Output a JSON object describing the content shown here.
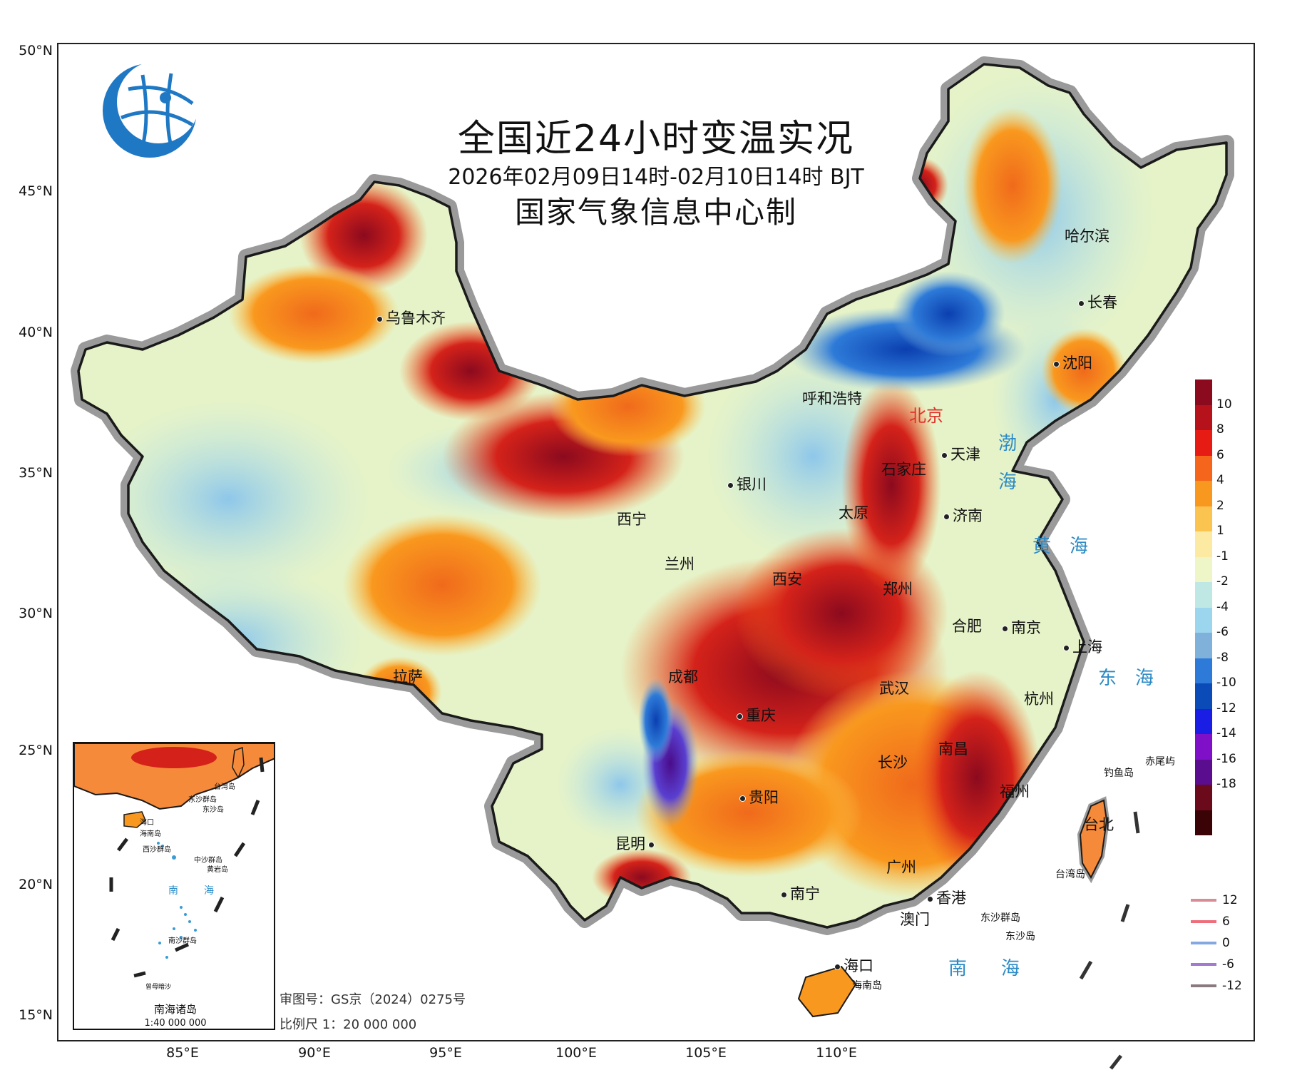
{
  "map": {
    "title": "全国近24小时变温实况",
    "time_range": "2026年02月09日14时-02月10日14时 BJT",
    "producer": "国家气象信息中心制",
    "approval_number": "审图号：GS京（2024）0275号",
    "scale": "比例尺 1：20 000 000"
  },
  "axes": {
    "latitude_labels": [
      "50°N",
      "45°N",
      "40°N",
      "35°N",
      "30°N",
      "25°N",
      "20°N",
      "15°N"
    ],
    "longitude_labels": [
      "85°E",
      "90°E",
      "95°E",
      "100°E",
      "105°E",
      "110°E"
    ]
  },
  "cities": [
    {
      "name": "乌鲁木齐"
    },
    {
      "name": "哈尔滨"
    },
    {
      "name": "长春"
    },
    {
      "name": "沈阳"
    },
    {
      "name": "呼和浩特"
    },
    {
      "name": "北京"
    },
    {
      "name": "天津"
    },
    {
      "name": "石家庄"
    },
    {
      "name": "银川"
    },
    {
      "name": "太原"
    },
    {
      "name": "济南"
    },
    {
      "name": "西宁"
    },
    {
      "name": "兰州"
    },
    {
      "name": "西安"
    },
    {
      "name": "郑州"
    },
    {
      "name": "合肥"
    },
    {
      "name": "南京"
    },
    {
      "name": "上海"
    },
    {
      "name": "拉萨"
    },
    {
      "name": "成都"
    },
    {
      "name": "武汉"
    },
    {
      "name": "杭州"
    },
    {
      "name": "重庆"
    },
    {
      "name": "长沙"
    },
    {
      "name": "南昌"
    },
    {
      "name": "贵阳"
    },
    {
      "name": "福州"
    },
    {
      "name": "台北"
    },
    {
      "name": "昆明"
    },
    {
      "name": "广州"
    },
    {
      "name": "南宁"
    },
    {
      "name": "香港"
    },
    {
      "name": "澳门"
    },
    {
      "name": "海口"
    }
  ],
  "islands": [
    "钓鱼岛",
    "赤尾屿",
    "台湾岛",
    "东沙群岛",
    "东沙岛",
    "海南岛"
  ],
  "seas": [
    "渤海",
    "黄海",
    "东海",
    "南海"
  ],
  "colorbar": {
    "labels": [
      "10",
      "8",
      "6",
      "4",
      "2",
      "1",
      "-1",
      "-2",
      "-4",
      "-6",
      "-8",
      "-10",
      "-12",
      "-14",
      "-16",
      "-18"
    ],
    "colors": [
      "#8b0a1e",
      "#b5121c",
      "#e51b14",
      "#f5661c",
      "#f9981e",
      "#fbc451",
      "#fdeaa2",
      "#eef6c8",
      "#bfe8e4",
      "#9cd6ee",
      "#7fb1db",
      "#2d7ad8",
      "#0b4bb8",
      "#1a1ee5",
      "#7f10c8",
      "#5b0d8f",
      "#6b0a1a",
      "#3a0306"
    ]
  },
  "contour_legend": [
    {
      "label": "12",
      "color": "#d98b97"
    },
    {
      "label": "6",
      "color": "#ee6f7a"
    },
    {
      "label": "0",
      "color": "#84a9e2"
    },
    {
      "label": "-6",
      "color": "#a27bd0"
    },
    {
      "label": "-12",
      "color": "#8a7a80"
    }
  ],
  "inset": {
    "title": "南海诸岛",
    "scale": "1:40 000 000",
    "labels": [
      "台湾岛",
      "东沙群岛",
      "东沙岛",
      "海口",
      "海南岛",
      "西沙群岛",
      "中沙群岛",
      "黄岩岛",
      "南",
      "海",
      "南沙群岛",
      "曾母暗沙"
    ]
  }
}
